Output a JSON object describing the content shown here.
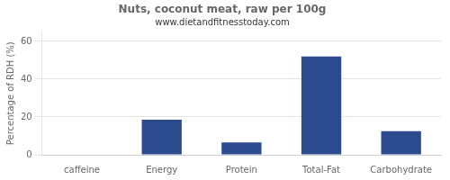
{
  "chart_data": {
    "type": "bar",
    "title": "Nuts, coconut meat, raw per 100g",
    "subtitle": "www.dietandfitnesstoday.com",
    "ylabel": "Percentage of RDH (%)",
    "categories": [
      "caffeine",
      "Energy",
      "Protein",
      "Total-Fat",
      "Carbohydrate"
    ],
    "values": [
      0,
      18.5,
      6.5,
      52,
      12.5
    ],
    "color": "#2b4b8e",
    "ylim": [
      0,
      65
    ],
    "yticks": [
      0,
      20,
      40,
      60
    ],
    "grid": true
  }
}
